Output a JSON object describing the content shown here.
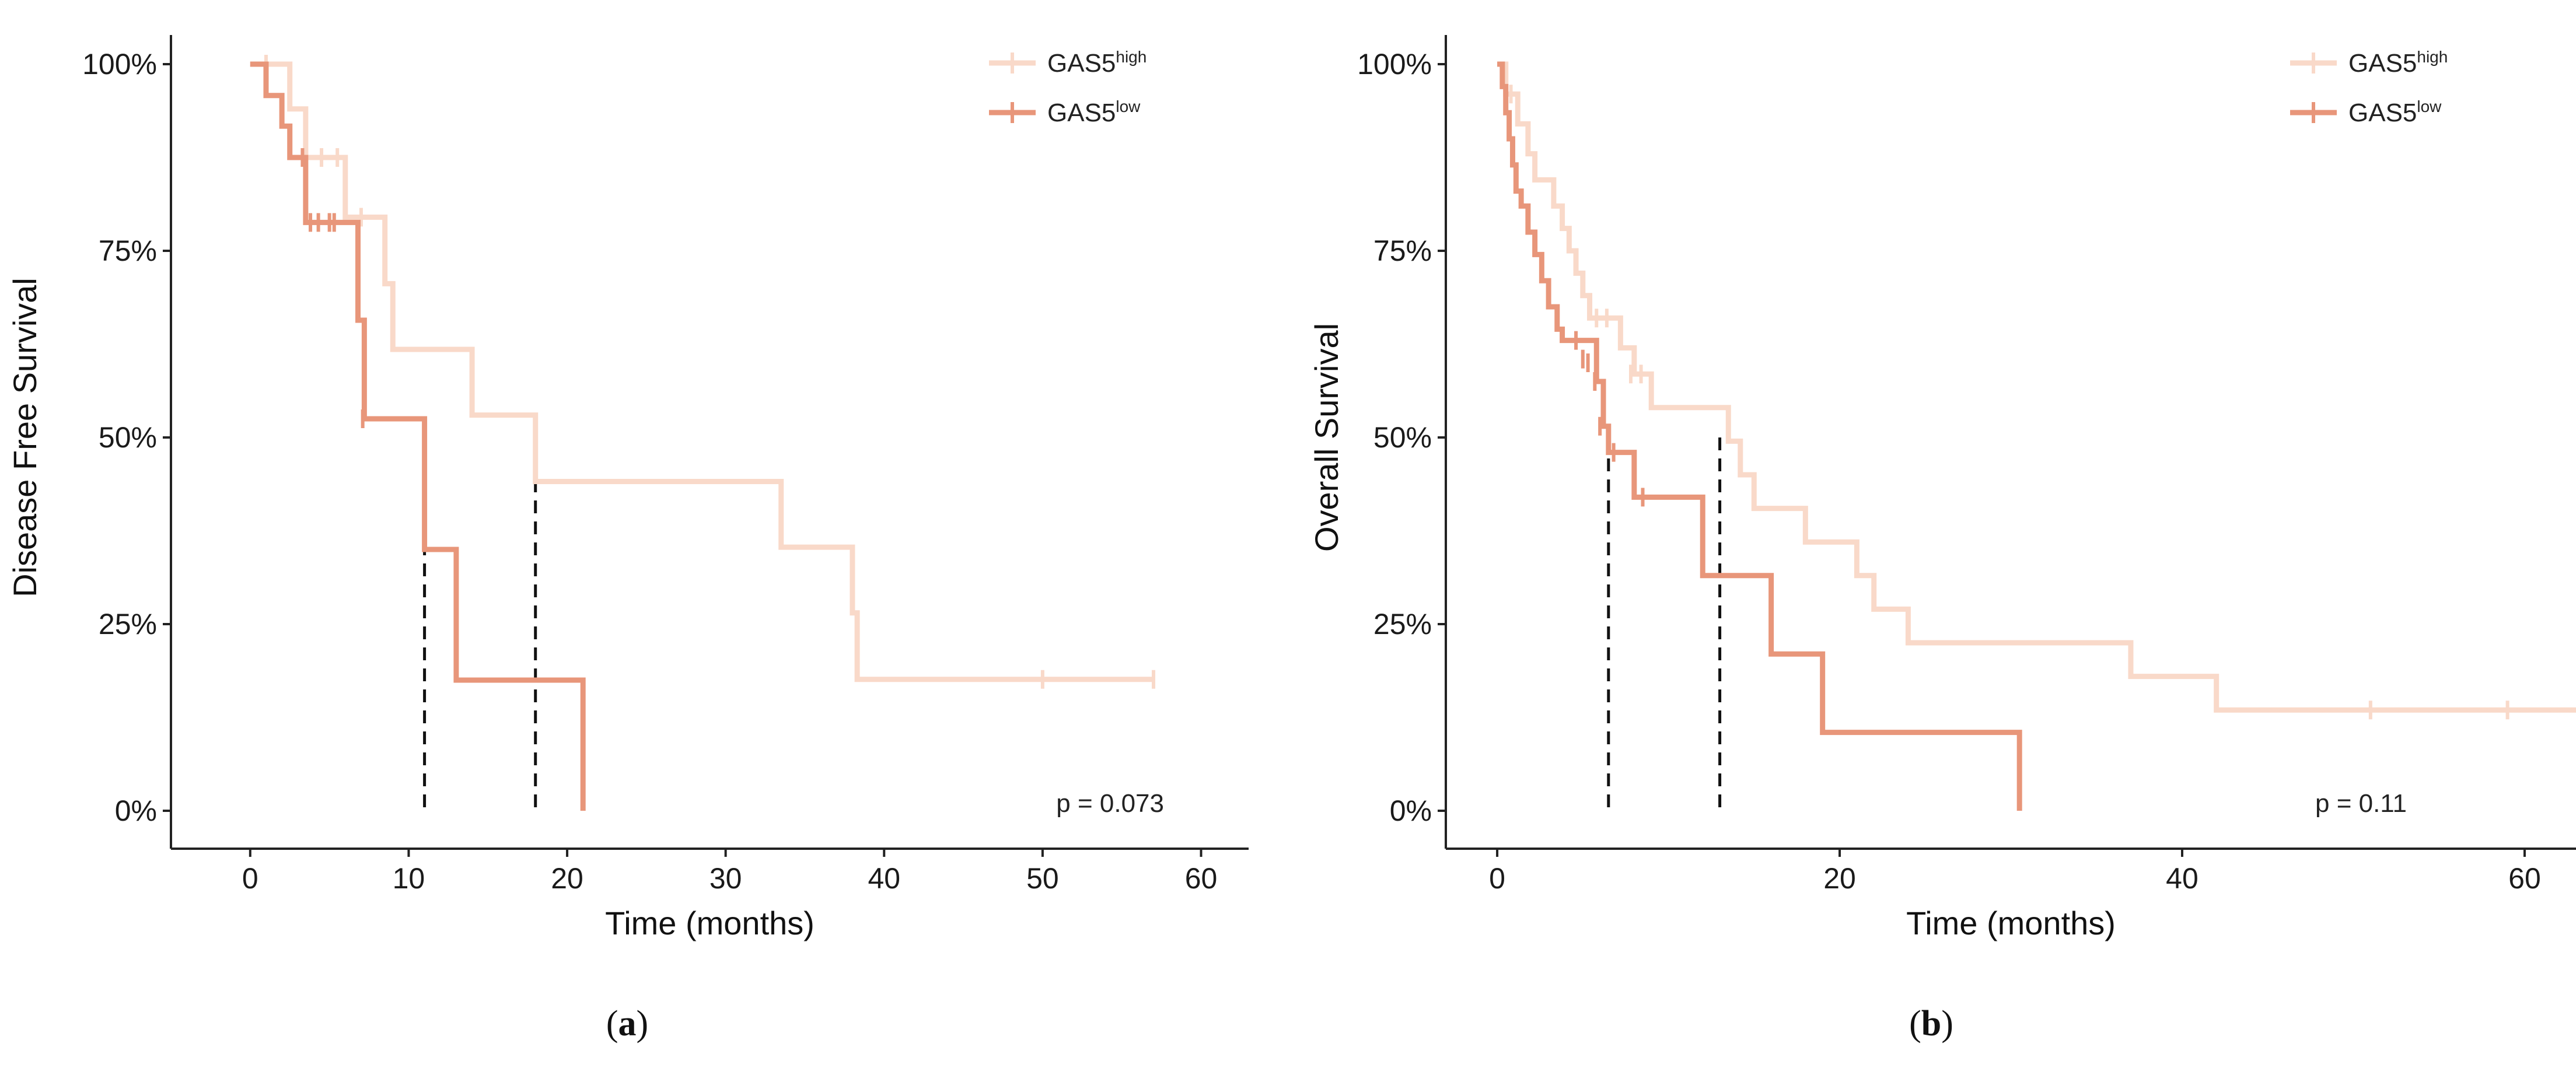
{
  "chart_data": [
    {
      "type": "line",
      "subtype": "kaplan-meier",
      "panel_label": "a",
      "xlabel": "Time (months)",
      "ylabel": "Disease Free Survival",
      "xlim": [
        -5,
        63
      ],
      "ylim": [
        0,
        1
      ],
      "xticks": [
        0,
        10,
        20,
        30,
        40,
        50,
        60
      ],
      "xtick_labels": [
        "0",
        "10",
        "20",
        "30",
        "40",
        "50",
        "60"
      ],
      "yticks": [
        0,
        0.25,
        0.5,
        0.75,
        1.0
      ],
      "ytick_labels": [
        "0%",
        "25%",
        "50%",
        "75%",
        "100%"
      ],
      "grid": false,
      "legend_position": "top-right",
      "p_value": "p = 0.073",
      "median_lines": [
        {
          "series": "GAS5low",
          "x": 11
        },
        {
          "series": "GAS5high",
          "x": 18
        }
      ],
      "series": [
        {
          "name": "GAS5high",
          "legend_base": "GAS5",
          "legend_sup": "high",
          "color": "#f9d9c9",
          "steps": [
            [
              0,
              1.0
            ],
            [
              2.5,
              0.94
            ],
            [
              3.5,
              0.875
            ],
            [
              6,
              0.795
            ],
            [
              8.5,
              0.706
            ],
            [
              9,
              0.618
            ],
            [
              14,
              0.53
            ],
            [
              18,
              0.441
            ],
            [
              33.5,
              0.353
            ],
            [
              38,
              0.265
            ],
            [
              38.3,
              0.176
            ],
            [
              57,
              0.176
            ]
          ],
          "censored": [
            [
              1.0,
              1.0
            ],
            [
              4.5,
              0.875
            ],
            [
              5.5,
              0.875
            ],
            [
              7.0,
              0.795
            ],
            [
              50,
              0.176
            ],
            [
              57,
              0.176
            ]
          ]
        },
        {
          "name": "GAS5low",
          "legend_base": "GAS5",
          "legend_sup": "low",
          "color": "#e8967a",
          "steps": [
            [
              0,
              1.0
            ],
            [
              1,
              0.958
            ],
            [
              2,
              0.917
            ],
            [
              2.5,
              0.875
            ],
            [
              3.5,
              0.788
            ],
            [
              6.8,
              0.657
            ],
            [
              7.2,
              0.525
            ],
            [
              11,
              0.35
            ],
            [
              13,
              0.175
            ],
            [
              21,
              0.0
            ]
          ],
          "censored": [
            [
              3.3,
              0.875
            ],
            [
              3.8,
              0.788
            ],
            [
              4.3,
              0.788
            ],
            [
              5.0,
              0.788
            ],
            [
              5.3,
              0.788
            ],
            [
              7.1,
              0.525
            ]
          ]
        }
      ]
    },
    {
      "type": "line",
      "subtype": "kaplan-meier",
      "panel_label": "b",
      "xlabel": "Time (months)",
      "ylabel": "Overall Survival",
      "xlim": [
        -3,
        63
      ],
      "ylim": [
        0,
        1
      ],
      "xticks": [
        0,
        20,
        40,
        60
      ],
      "xtick_labels": [
        "0",
        "20",
        "40",
        "60"
      ],
      "yticks": [
        0,
        0.25,
        0.5,
        0.75,
        1.0
      ],
      "ytick_labels": [
        "0%",
        "25%",
        "50%",
        "75%",
        "100%"
      ],
      "grid": false,
      "legend_position": "top-right",
      "p_value": "p = 0.11",
      "median_lines": [
        {
          "series": "GAS5low",
          "x": 6.5
        },
        {
          "series": "GAS5high",
          "x": 13
        }
      ],
      "series": [
        {
          "name": "GAS5high",
          "legend_base": "GAS5",
          "legend_sup": "high",
          "color": "#f9d9c9",
          "steps": [
            [
              0,
              1.0
            ],
            [
              0.5,
              0.96
            ],
            [
              1.2,
              0.92
            ],
            [
              1.8,
              0.88
            ],
            [
              2.2,
              0.845
            ],
            [
              3.3,
              0.81
            ],
            [
              3.8,
              0.78
            ],
            [
              4.2,
              0.75
            ],
            [
              4.6,
              0.72
            ],
            [
              5.0,
              0.69
            ],
            [
              5.4,
              0.66
            ],
            [
              7.2,
              0.62
            ],
            [
              8.0,
              0.585
            ],
            [
              9.0,
              0.54
            ],
            [
              13.5,
              0.495
            ],
            [
              14.2,
              0.45
            ],
            [
              15.0,
              0.405
            ],
            [
              18.0,
              0.36
            ],
            [
              21.0,
              0.315
            ],
            [
              22.0,
              0.27
            ],
            [
              24.0,
              0.225
            ],
            [
              37.0,
              0.18
            ],
            [
              42.0,
              0.135
            ],
            [
              63,
              0.135
            ]
          ],
          "censored": [
            [
              0.8,
              0.96
            ],
            [
              5.8,
              0.66
            ],
            [
              6.4,
              0.66
            ],
            [
              7.8,
              0.585
            ],
            [
              8.4,
              0.585
            ],
            [
              51,
              0.135
            ],
            [
              59,
              0.135
            ]
          ]
        },
        {
          "name": "GAS5low",
          "legend_base": "GAS5",
          "legend_sup": "low",
          "color": "#e8967a",
          "steps": [
            [
              0,
              1.0
            ],
            [
              0.3,
              0.97
            ],
            [
              0.5,
              0.935
            ],
            [
              0.7,
              0.9
            ],
            [
              0.9,
              0.865
            ],
            [
              1.1,
              0.83
            ],
            [
              1.4,
              0.81
            ],
            [
              1.8,
              0.775
            ],
            [
              2.2,
              0.745
            ],
            [
              2.6,
              0.71
            ],
            [
              3.0,
              0.675
            ],
            [
              3.5,
              0.645
            ],
            [
              3.8,
              0.63
            ],
            [
              5.8,
              0.575
            ],
            [
              6.2,
              0.515
            ],
            [
              6.5,
              0.48
            ],
            [
              8.0,
              0.42
            ],
            [
              12.0,
              0.315
            ],
            [
              16.0,
              0.21
            ],
            [
              19.0,
              0.105
            ],
            [
              30.5,
              0.0
            ]
          ],
          "censored": [
            [
              4.6,
              0.63
            ],
            [
              5.0,
              0.605
            ],
            [
              5.3,
              0.6
            ],
            [
              5.7,
              0.575
            ],
            [
              6.0,
              0.515
            ],
            [
              6.8,
              0.48
            ],
            [
              8.5,
              0.42
            ]
          ]
        }
      ]
    }
  ]
}
